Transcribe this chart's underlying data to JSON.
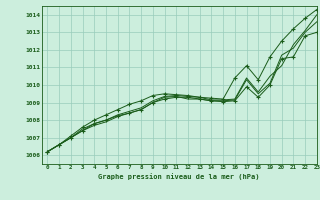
{
  "title": "Graphe pression niveau de la mer (hPa)",
  "bg_color": "#cceedd",
  "grid_color": "#99ccbb",
  "line_color": "#1a5c1a",
  "text_color": "#1a5c1a",
  "xlim": [
    -0.5,
    23
  ],
  "ylim": [
    1005.5,
    1014.5
  ],
  "yticks": [
    1006,
    1007,
    1008,
    1009,
    1010,
    1011,
    1012,
    1013,
    1014
  ],
  "xticks": [
    0,
    1,
    2,
    3,
    4,
    5,
    6,
    7,
    8,
    9,
    10,
    11,
    12,
    13,
    14,
    15,
    16,
    17,
    18,
    19,
    20,
    21,
    22,
    23
  ],
  "series": [
    [
      1006.2,
      1006.6,
      1007.0,
      1007.4,
      1007.7,
      1007.9,
      1008.2,
      1008.4,
      1008.6,
      1009.0,
      1009.3,
      1009.35,
      1009.2,
      1009.2,
      1009.1,
      1009.1,
      1009.15,
      1010.3,
      1009.5,
      1010.1,
      1011.7,
      1012.1,
      1013.0,
      1013.6
    ],
    [
      1006.2,
      1006.6,
      1007.0,
      1007.5,
      1007.8,
      1008.0,
      1008.3,
      1008.5,
      1008.7,
      1009.1,
      1009.35,
      1009.4,
      1009.35,
      1009.3,
      1009.15,
      1009.15,
      1009.2,
      1010.4,
      1009.6,
      1010.5,
      1011.1,
      1012.3,
      1013.1,
      1014.0
    ],
    [
      1006.2,
      1006.6,
      1007.1,
      1007.6,
      1008.0,
      1008.3,
      1008.6,
      1008.9,
      1009.1,
      1009.4,
      1009.5,
      1009.45,
      1009.4,
      1009.3,
      1009.25,
      1009.2,
      1010.4,
      1011.1,
      1010.3,
      1011.6,
      1012.5,
      1013.2,
      1013.8,
      1014.3
    ],
    [
      1006.2,
      1006.6,
      1007.0,
      1007.4,
      1007.8,
      1008.0,
      1008.25,
      1008.4,
      1008.6,
      1009.0,
      1009.2,
      1009.3,
      1009.3,
      1009.2,
      1009.1,
      1009.05,
      1009.1,
      1009.9,
      1009.3,
      1010.0,
      1011.5,
      1011.6,
      1012.8,
      1013.0
    ]
  ],
  "marker_series_idx": [
    2,
    3
  ],
  "marker": "+",
  "marker_size": 3.5,
  "linewidth": 0.7
}
